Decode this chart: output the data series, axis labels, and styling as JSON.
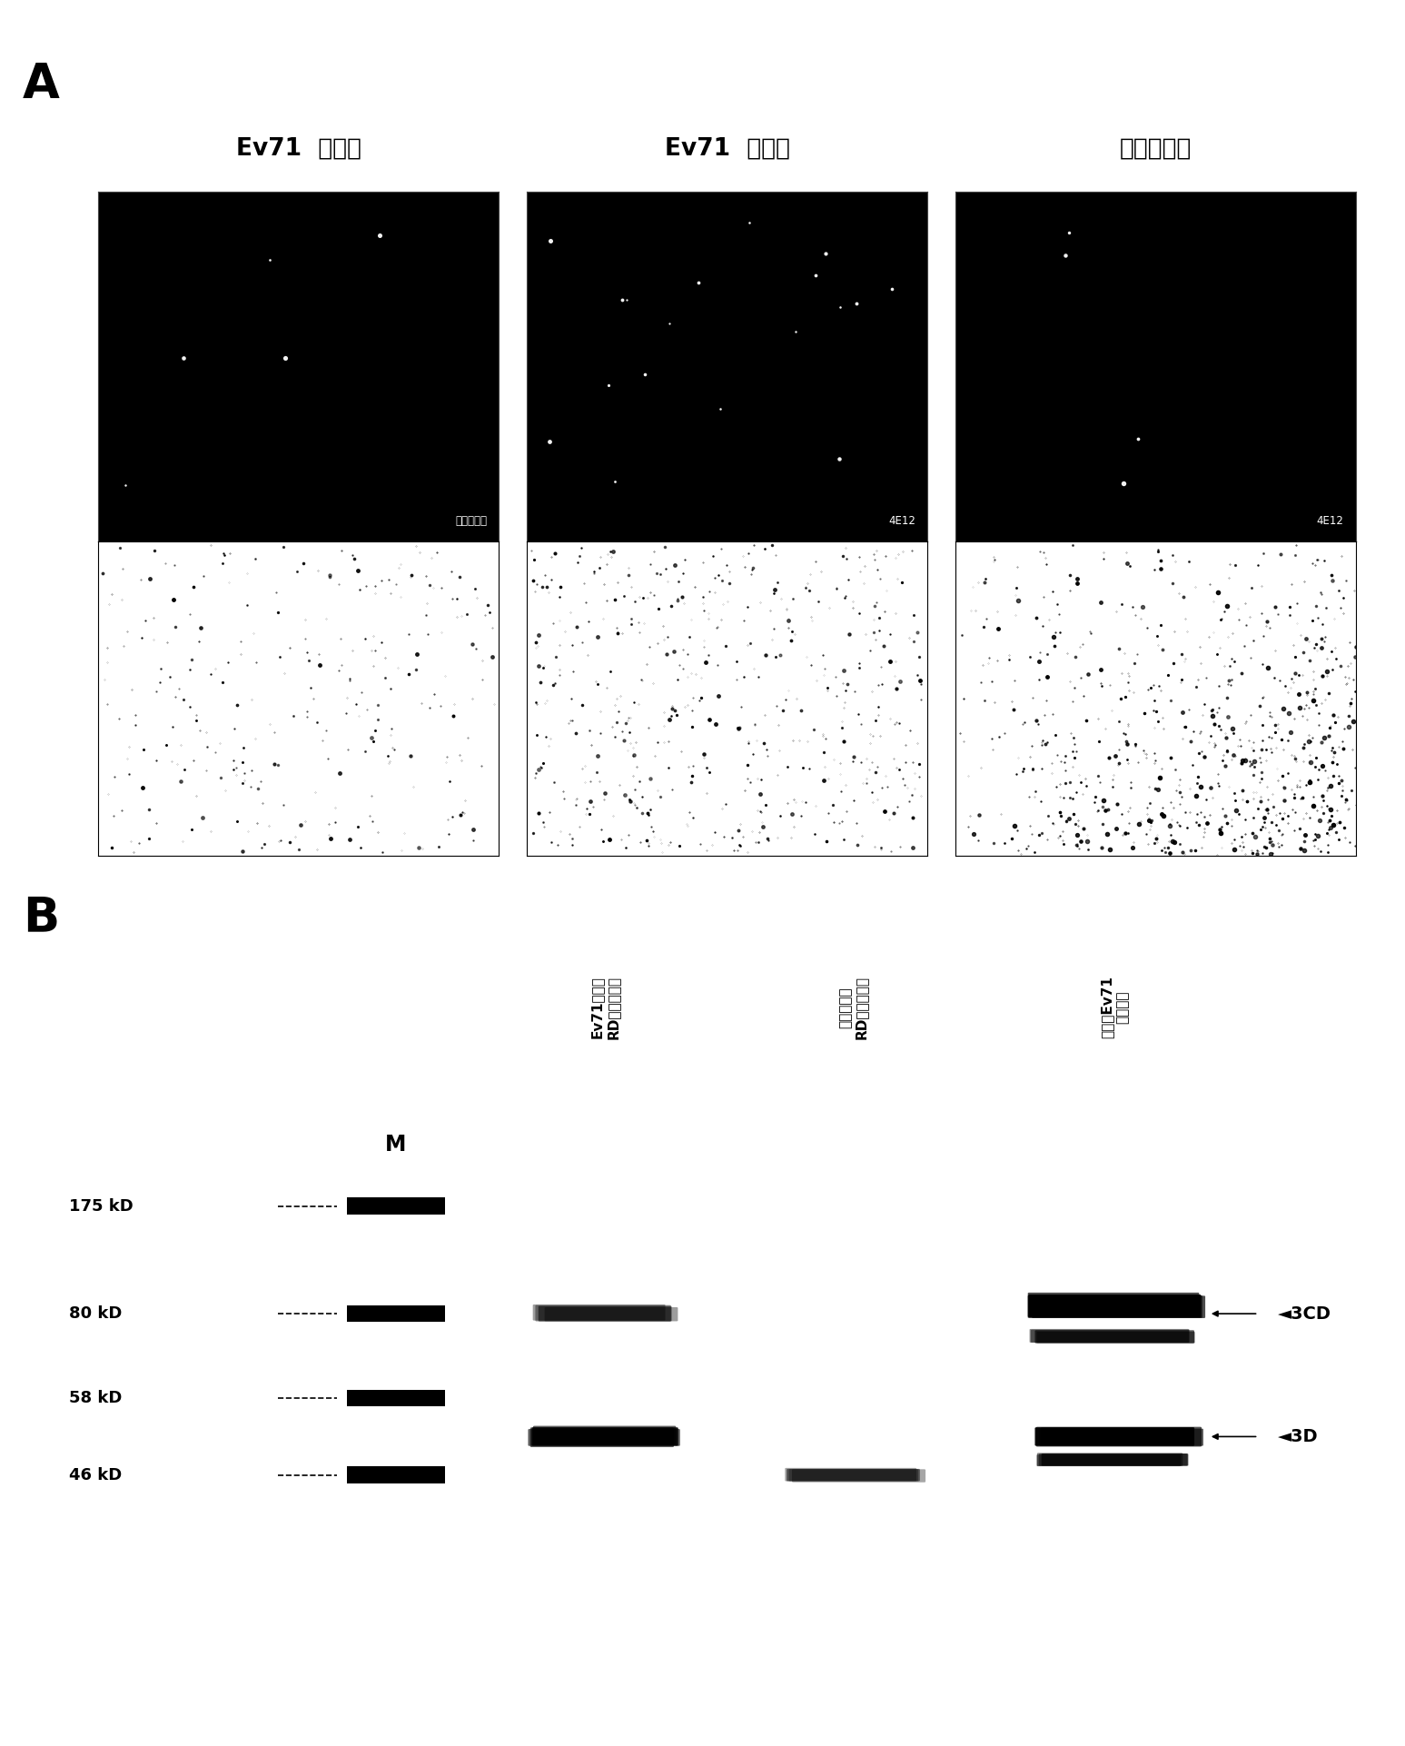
{
  "panel_A_label": "A",
  "panel_B_label": "B",
  "col_labels_A": [
    "Ev71  感染的",
    "Ev71  感染的",
    "未被感染的"
  ],
  "row1_labels_A": [
    "多克隆血清",
    "4E12",
    "4E12"
  ],
  "col_labels_B_lines": [
    [
      "Ev71感染的",
      "RD细胞裂解物"
    ],
    [
      "未被感染的",
      "RD细胞裂解物"
    ],
    [
      "纯化的Ev71",
      "病毒颗粒"
    ]
  ],
  "band_annotations": [
    "3CD",
    "3D"
  ],
  "mw_labels": [
    "175 kD",
    "80 kD",
    "58 kD",
    "46 kD"
  ],
  "figsize": [
    15.47,
    19.22
  ],
  "dpi": 100
}
